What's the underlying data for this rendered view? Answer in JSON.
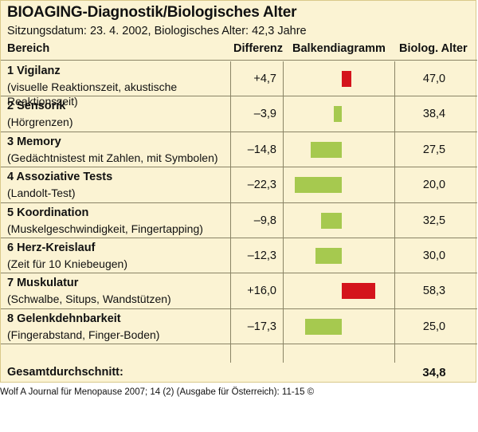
{
  "title": "BIOAGING-Diagnostik/Biologisches Alter",
  "subtitle": "Sitzungsdatum: 23. 4. 2002, Biologisches Alter: 42,3 Jahre",
  "headers": {
    "area": "Bereich",
    "diff": "Differenz",
    "bar": "Balkendiagramm",
    "age": "Biolog. Alter"
  },
  "rows": [
    {
      "name": "1 Vigilanz",
      "desc1": "(visuelle Reaktionszeit, akustische",
      "desc2": "Reaktionszeit)",
      "diff_label": "+4,7",
      "diff": 4.7,
      "age": "47,0"
    },
    {
      "name": "2 Sensorik",
      "desc1": "(Hörgrenzen)",
      "desc2": "",
      "diff_label": "–3,9",
      "diff": -3.9,
      "age": "38,4"
    },
    {
      "name": "3 Memory",
      "desc1": "(Gedächtnistest mit Zahlen, mit Symbolen)",
      "desc2": "",
      "diff_label": "–14,8",
      "diff": -14.8,
      "age": "27,5"
    },
    {
      "name": "4 Assoziative Tests",
      "desc1": "(Landolt-Test)",
      "desc2": "",
      "diff_label": "–22,3",
      "diff": -22.3,
      "age": "20,0"
    },
    {
      "name": "5 Koordination",
      "desc1": "(Muskelgeschwindigkeit, Fingertapping)",
      "desc2": "",
      "diff_label": "–9,8",
      "diff": -9.8,
      "age": "32,5"
    },
    {
      "name": "6 Herz-Kreislauf",
      "desc1": "(Zeit für 10 Kniebeugen)",
      "desc2": "",
      "diff_label": "–12,3",
      "diff": -12.3,
      "age": "30,0"
    },
    {
      "name": "7 Muskulatur",
      "desc1": "(Schwalbe, Situps, Wandstützen)",
      "desc2": "",
      "diff_label": "+16,0",
      "diff": 16.0,
      "age": "58,3"
    },
    {
      "name": "8 Gelenkdehnbarkeit",
      "desc1": "(Fingerabstand, Finger-Boden)",
      "desc2": "",
      "diff_label": "–17,3",
      "diff": -17.3,
      "age": "25,0"
    }
  ],
  "total": {
    "label": "Gesamtdurchschnitt:",
    "value": "34,8"
  },
  "credit": "Wolf A Journal für Menopause 2007; 14 (2) (Ausgabe für Österreich): 11-15 ©",
  "colors": {
    "positive": "#d4141c",
    "negative": "#a6c94f",
    "background": "#fbf3d3",
    "lines": "#8a8466"
  }
}
